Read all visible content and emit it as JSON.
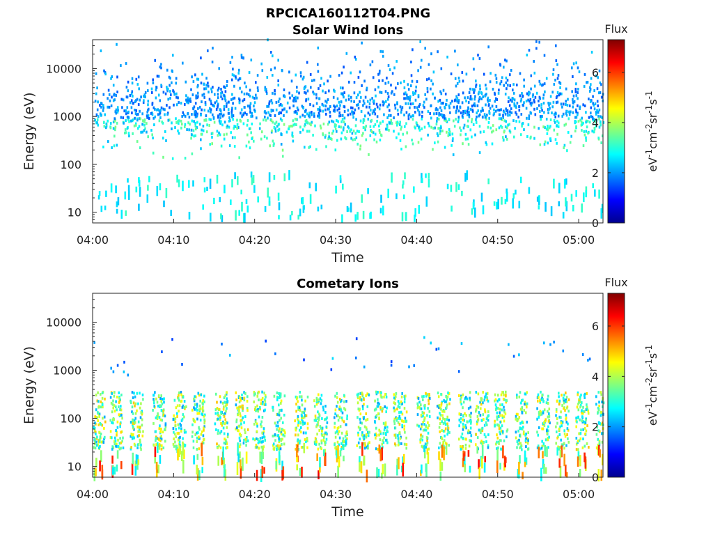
{
  "figure": {
    "title": "RPCICA160112T04.PNG"
  },
  "chart_data": [
    {
      "type": "heatmap",
      "title": "Solar Wind Ions",
      "xlabel": "Time",
      "ylabel": "Energy (eV)",
      "x_ticks": [
        "04:00",
        "04:10",
        "04:20",
        "04:30",
        "04:40",
        "04:50",
        "05:00"
      ],
      "xlim": [
        "04:00",
        "05:03"
      ],
      "y_ticks": [
        10,
        100,
        1000,
        10000
      ],
      "y_tick_labels": [
        "10",
        "100",
        "1000",
        "10000"
      ],
      "ylim": [
        6,
        40000
      ],
      "yscale": "log",
      "colorbar": {
        "title": "Flux",
        "unit": "eV-1cm-2sr-1s-1",
        "range": [
          0,
          7.3
        ],
        "ticks": [
          0,
          2,
          4,
          6
        ],
        "colormap": "jet"
      },
      "pattern": "scattered",
      "flux_range": [
        1.5,
        4.5
      ],
      "note_population": "sparse counts spread across 20 eV – 20 keV with most around 200 eV – 3 keV"
    },
    {
      "type": "heatmap",
      "title": "Cometary Ions",
      "xlabel": "Time",
      "ylabel": "Energy (eV)",
      "x_ticks": [
        "04:00",
        "04:10",
        "04:20",
        "04:30",
        "04:40",
        "04:50",
        "05:00"
      ],
      "xlim": [
        "04:00",
        "05:03"
      ],
      "y_ticks": [
        10,
        100,
        1000,
        10000
      ],
      "y_tick_labels": [
        "10",
        "100",
        "1000",
        "10000"
      ],
      "ylim": [
        6,
        40000
      ],
      "yscale": "log",
      "colorbar": {
        "title": "Flux",
        "unit": "eV-1cm-2sr-1s-1",
        "range": [
          0,
          7.3
        ],
        "ticks": [
          0,
          2,
          4,
          6
        ],
        "colormap": "jet"
      },
      "pattern": "periodic",
      "flux_range": [
        2,
        6
      ],
      "note_population": "dense periodic bands near 30 – 400 eV repeating every ~2.5 min"
    }
  ]
}
